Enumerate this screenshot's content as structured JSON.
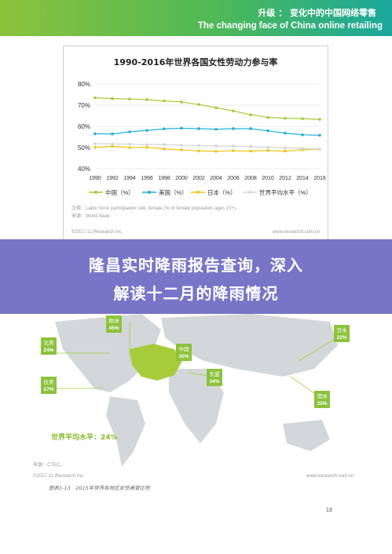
{
  "header": {
    "title_cn": "升级 ： 变化中的中国网络零售",
    "title_en": "The changing face of China online retailing"
  },
  "chart_data": {
    "type": "line",
    "title": "1990-2016年世界各国女性劳动力参与率",
    "categories": [
      "1990",
      "1992",
      "1994",
      "1996",
      "1998",
      "2000",
      "2002",
      "2004",
      "2006",
      "2008",
      "2010",
      "2012",
      "2014",
      "2016"
    ],
    "yticks": [
      "80%",
      "70%",
      "60%",
      "50%",
      "40%"
    ],
    "ylim": [
      40,
      80
    ],
    "grid": true,
    "legend_position": "bottom",
    "series": [
      {
        "name": "中国（%）",
        "color": "#a9c93a",
        "values": [
          73.5,
          73.1,
          72.9,
          72.6,
          72.0,
          71.5,
          70.3,
          68.8,
          67.3,
          65.5,
          64.2,
          63.8,
          63.6,
          63.3
        ]
      },
      {
        "name": "美国（%）",
        "color": "#25b0d6",
        "values": [
          56.5,
          56.4,
          57.4,
          58.1,
          58.8,
          59.1,
          58.9,
          58.6,
          58.9,
          58.9,
          57.9,
          56.8,
          56.0,
          55.8
        ]
      },
      {
        "name": "日本（%）",
        "color": "#f0c41b",
        "values": [
          50.1,
          50.6,
          50.0,
          50.1,
          49.3,
          48.9,
          48.4,
          48.2,
          48.5,
          48.3,
          48.6,
          48.3,
          48.9,
          49.1
        ]
      },
      {
        "name": "世界平均水平（%）",
        "color": "#d6d6d6",
        "values": [
          51.8,
          51.7,
          51.6,
          51.4,
          51.4,
          51.1,
          51.0,
          50.8,
          50.7,
          50.5,
          50.1,
          49.8,
          49.5,
          49.2
        ]
      }
    ]
  },
  "chart_notes": {
    "note": "注释：Labor force participation rate, female (% of female population ages 15+).",
    "source": "来源：World Bank",
    "copyright": "©2017.11 iResearch Inc.",
    "site": "www.iresearch.com.cn"
  },
  "overlay": {
    "line1": "隆昌实时降雨报告查询，深入",
    "line2": "解读十二月的降雨情况"
  },
  "map": {
    "world_avg_label": "世界平均水平：24%",
    "regions": [
      {
        "name": "欧洲",
        "value": "45%"
      },
      {
        "name": "北美",
        "value": "24%"
      },
      {
        "name": "中国",
        "value": "30%"
      },
      {
        "name": "日本",
        "value": "22%"
      },
      {
        "name": "拉美",
        "value": "27%"
      },
      {
        "name": "东盟",
        "value": "34%"
      },
      {
        "name": "澳洲",
        "value": "25%"
      }
    ],
    "source": "来源：CTEC。",
    "copyright": "©2017.11 iResearch Inc.",
    "site": "www.iresearch.com.cn",
    "caption": "图表1-13　2015年世界各地区女性高管比例"
  },
  "page_number": "13"
}
